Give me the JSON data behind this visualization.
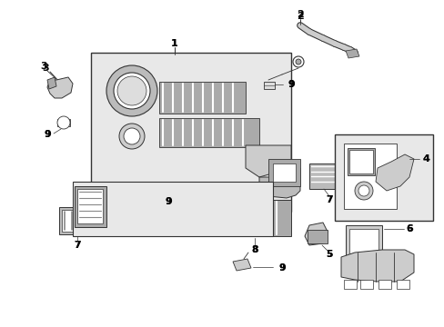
{
  "background_color": "#ffffff",
  "line_color": "#333333",
  "gray_fill": "#cccccc",
  "light_gray": "#e8e8e8",
  "fig_width": 4.89,
  "fig_height": 3.6,
  "dpi": 100
}
